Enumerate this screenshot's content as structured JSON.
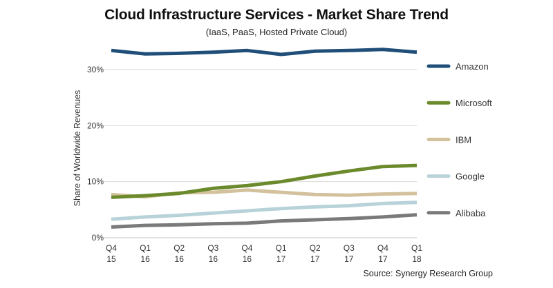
{
  "chart_data": {
    "type": "line",
    "title": "Cloud Infrastructure Services - Market Share Trend",
    "subtitle": "(IaaS, PaaS, Hosted Private Cloud)",
    "xlabel": "",
    "ylabel": "Share of Worldwide Revenues",
    "ylim": [
      0,
      30
    ],
    "yticks": [
      0,
      10,
      20,
      30
    ],
    "ytick_labels": [
      "0%",
      "10%",
      "20%",
      "30%"
    ],
    "grid": true,
    "legend_position": "right",
    "categories": [
      {
        "q": "Q4",
        "y": "15"
      },
      {
        "q": "Q1",
        "y": "16"
      },
      {
        "q": "Q2",
        "y": "16"
      },
      {
        "q": "Q3",
        "y": "16"
      },
      {
        "q": "Q4",
        "y": "16"
      },
      {
        "q": "Q1",
        "y": "17"
      },
      {
        "q": "Q2",
        "y": "17"
      },
      {
        "q": "Q3",
        "y": "17"
      },
      {
        "q": "Q4",
        "y": "17"
      },
      {
        "q": "Q1",
        "y": "18"
      }
    ],
    "series": [
      {
        "name": "Amazon",
        "color": "#1f4e79",
        "values": [
          33.4,
          32.8,
          32.9,
          33.1,
          33.4,
          32.7,
          33.3,
          33.4,
          33.6,
          33.1
        ]
      },
      {
        "name": "Microsoft",
        "color": "#6b8a2c",
        "values": [
          7.2,
          7.5,
          7.9,
          8.8,
          9.3,
          10.0,
          11.0,
          11.9,
          12.7,
          12.9
        ]
      },
      {
        "name": "IBM",
        "color": "#d2c19c",
        "values": [
          7.7,
          7.3,
          8.0,
          8.1,
          8.5,
          8.1,
          7.7,
          7.6,
          7.8,
          7.9
        ]
      },
      {
        "name": "Google",
        "color": "#b7d2d9",
        "values": [
          3.3,
          3.7,
          4.0,
          4.4,
          4.8,
          5.2,
          5.5,
          5.7,
          6.1,
          6.3
        ]
      },
      {
        "name": "Alibaba",
        "color": "#7a7a7a",
        "values": [
          1.9,
          2.2,
          2.3,
          2.5,
          2.6,
          3.0,
          3.2,
          3.4,
          3.7,
          4.1
        ]
      }
    ],
    "source": "Source: Synergy Research Group"
  }
}
